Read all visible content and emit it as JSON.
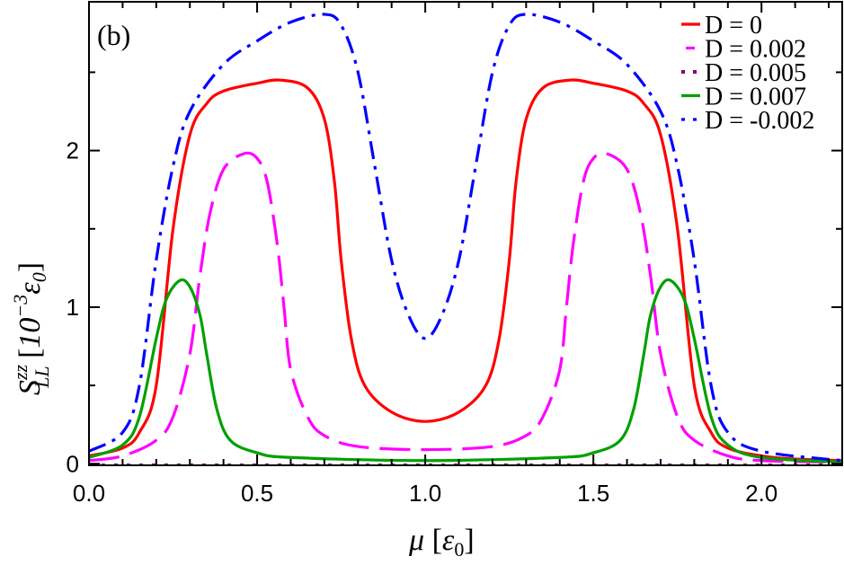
{
  "chart_data": {
    "type": "line",
    "panel_label": "(b)",
    "xlabel": {
      "symbol": "μ",
      "unit": "ε",
      "unit_sub": "0"
    },
    "ylabel": {
      "symbol": "S",
      "sup": "zz",
      "sub": "LL",
      "unit_prefix": "10",
      "unit_exp": "−3",
      "unit": "ε",
      "unit_sub": "0"
    },
    "xlim": [
      0,
      2.24
    ],
    "ylim": [
      -0.01,
      2.95
    ],
    "xticks": [
      0,
      0.5,
      1.0,
      1.5,
      2.0
    ],
    "xtick_labels": [
      "0.0",
      "0.5",
      "1.0",
      "1.5",
      "2.0"
    ],
    "yticks": [
      0,
      1,
      2
    ],
    "ytick_labels": [
      "0",
      "1",
      "2"
    ],
    "grid": false,
    "legend_position": "top-right",
    "series": [
      {
        "name": "D = 0",
        "color": "#ff0000",
        "style": "solid",
        "x": [
          0,
          0.1,
          0.15,
          0.2,
          0.25,
          0.3,
          0.35,
          0.4,
          0.5,
          0.57,
          0.65,
          0.7,
          0.73,
          0.75,
          0.78,
          0.82,
          0.9,
          1.0,
          1.1,
          1.18,
          1.22,
          1.25,
          1.27,
          1.3,
          1.35,
          1.43,
          1.5,
          1.6,
          1.65,
          1.7,
          1.75,
          1.8,
          1.85,
          1.9,
          2.0,
          2.1,
          2.24
        ],
        "y": [
          0.05,
          0.1,
          0.2,
          0.5,
          1.5,
          2.1,
          2.3,
          2.38,
          2.43,
          2.45,
          2.4,
          2.2,
          1.8,
          1.3,
          0.8,
          0.5,
          0.33,
          0.27,
          0.33,
          0.5,
          0.8,
          1.3,
          1.8,
          2.2,
          2.4,
          2.45,
          2.43,
          2.38,
          2.3,
          2.1,
          1.5,
          0.5,
          0.2,
          0.1,
          0.05,
          0.03,
          0.02
        ]
      },
      {
        "name": "D = 0.002",
        "color": "#ff00ff",
        "style": "dashed",
        "x": [
          0,
          0.1,
          0.2,
          0.25,
          0.3,
          0.33,
          0.36,
          0.4,
          0.46,
          0.5,
          0.53,
          0.56,
          0.58,
          0.6,
          0.65,
          0.7,
          0.8,
          1.0,
          1.2,
          1.3,
          1.35,
          1.4,
          1.42,
          1.44,
          1.47,
          1.5,
          1.54,
          1.6,
          1.64,
          1.67,
          1.7,
          1.75,
          1.8,
          1.9,
          2.0,
          2.24
        ],
        "y": [
          0.02,
          0.05,
          0.15,
          0.3,
          0.7,
          1.2,
          1.6,
          1.88,
          1.98,
          1.95,
          1.8,
          1.4,
          1.0,
          0.6,
          0.3,
          0.18,
          0.11,
          0.09,
          0.11,
          0.18,
          0.3,
          0.6,
          1.0,
          1.4,
          1.8,
          1.95,
          1.98,
          1.88,
          1.6,
          1.2,
          0.7,
          0.3,
          0.15,
          0.05,
          0.02,
          0.01
        ]
      },
      {
        "name": "D = 0.005",
        "color": "#800080",
        "style": "dotted",
        "x": [
          0,
          0.5,
          1.0,
          1.5,
          2.0,
          2.24
        ],
        "y": [
          -0.01,
          -0.01,
          -0.01,
          -0.01,
          -0.01,
          -0.01
        ]
      },
      {
        "name": "D = 0.007",
        "color": "#00a000",
        "style": "solid",
        "x": [
          0,
          0.1,
          0.15,
          0.2,
          0.23,
          0.27,
          0.3,
          0.33,
          0.35,
          0.38,
          0.42,
          0.5,
          0.6,
          1.0,
          1.4,
          1.5,
          1.58,
          1.62,
          1.65,
          1.67,
          1.7,
          1.73,
          1.77,
          1.8,
          1.85,
          1.9,
          2.0,
          2.24
        ],
        "y": [
          0.04,
          0.12,
          0.3,
          0.8,
          1.05,
          1.17,
          1.13,
          0.95,
          0.7,
          0.35,
          0.15,
          0.07,
          0.04,
          0.02,
          0.04,
          0.07,
          0.15,
          0.35,
          0.7,
          0.95,
          1.13,
          1.17,
          1.05,
          0.8,
          0.3,
          0.12,
          0.04,
          0.01
        ]
      },
      {
        "name": "D = -0.002",
        "color": "#0000ff",
        "style": "dashdot",
        "x": [
          0,
          0.1,
          0.15,
          0.2,
          0.25,
          0.3,
          0.4,
          0.5,
          0.6,
          0.7,
          0.75,
          0.8,
          0.85,
          0.9,
          0.95,
          1.0,
          1.05,
          1.1,
          1.15,
          1.2,
          1.25,
          1.3,
          1.4,
          1.5,
          1.6,
          1.7,
          1.75,
          1.8,
          1.85,
          1.9,
          2.0,
          2.24
        ],
        "y": [
          0.08,
          0.2,
          0.5,
          1.3,
          1.9,
          2.25,
          2.55,
          2.7,
          2.82,
          2.87,
          2.8,
          2.5,
          1.9,
          1.3,
          0.95,
          0.8,
          0.95,
          1.3,
          1.9,
          2.5,
          2.8,
          2.87,
          2.82,
          2.7,
          2.55,
          2.25,
          1.9,
          1.3,
          0.5,
          0.2,
          0.08,
          0.02
        ]
      }
    ]
  }
}
